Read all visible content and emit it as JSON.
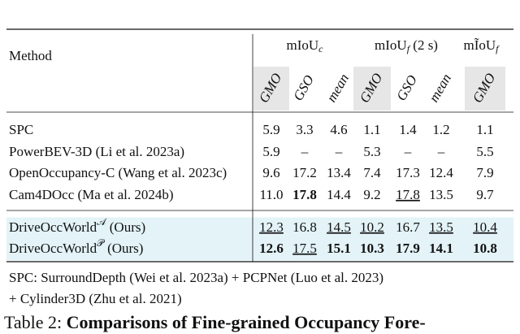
{
  "table": {
    "method_header": "Method",
    "groups": [
      {
        "base": "mIoU",
        "sub": "c"
      },
      {
        "base": "mIoU",
        "sub": "f",
        "suffix": " (2 s)"
      },
      {
        "base": "mĨoU",
        "sub": "f"
      }
    ],
    "columns": [
      "GMO",
      "GSO",
      "mean",
      "GMO",
      "GSO",
      "mean",
      "GMO"
    ],
    "shaded_columns": [
      0,
      3,
      6
    ],
    "rows": [
      {
        "method": {
          "name": "SPC"
        },
        "cells": [
          "5.9",
          "3.3",
          "4.6",
          "1.1",
          "1.4",
          "1.2",
          "1.1"
        ],
        "styles": [
          "",
          "",
          "",
          "",
          "",
          "",
          ""
        ]
      },
      {
        "method": {
          "name": "PowerBEV-3D (Li et al. 2023a)"
        },
        "cells": [
          "5.9",
          "–",
          "–",
          "5.3",
          "–",
          "–",
          "5.5"
        ],
        "styles": [
          "",
          "",
          "",
          "",
          "",
          "",
          ""
        ]
      },
      {
        "method": {
          "name": "OpenOccupancy-C (Wang et al. 2023c)"
        },
        "cells": [
          "9.6",
          "17.2",
          "13.4",
          "7.4",
          "17.3",
          "12.4",
          "7.9"
        ],
        "styles": [
          "",
          "",
          "",
          "",
          "",
          "",
          ""
        ]
      },
      {
        "method": {
          "name": "Cam4DOcc (Ma et al. 2024b)"
        },
        "cells": [
          "11.0",
          "17.8",
          "14.4",
          "9.2",
          "17.8",
          "13.5",
          "9.7"
        ],
        "styles": [
          "",
          "b",
          "",
          "",
          "u",
          "",
          ""
        ]
      },
      {
        "method": {
          "name": "DriveOccWorld",
          "sup": "𝒜",
          "suffix": " (Ours)"
        },
        "cells": [
          "12.3",
          "16.8",
          "14.5",
          "10.2",
          "16.7",
          "13.5",
          "10.4"
        ],
        "styles": [
          "u",
          "",
          "u",
          "u",
          "",
          "u",
          "u"
        ],
        "highlight": true
      },
      {
        "method": {
          "name": "DriveOccWorld",
          "sup": "𝒫",
          "suffix": " (Ours)"
        },
        "cells": [
          "12.6",
          "17.5",
          "15.1",
          "10.3",
          "17.9",
          "14.1",
          "10.8"
        ],
        "styles": [
          "b",
          "u",
          "b",
          "b",
          "b",
          "b",
          "b"
        ],
        "highlight": true
      }
    ],
    "footnote": [
      "SPC: SurroundDepth (Wei et al. 2023a) + PCPNet (Luo et al. 2023)",
      "+ Cylinder3D (Zhu et al. 2021)"
    ],
    "caption": {
      "label": "Table 2: ",
      "text": "Comparisons of Fine-grained Occupancy Fore-"
    }
  }
}
